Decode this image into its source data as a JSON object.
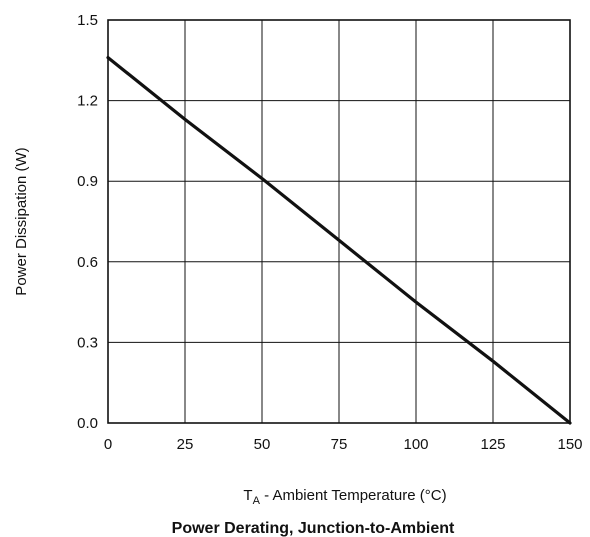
{
  "chart_data": {
    "type": "line",
    "title": "Power Derating, Junction-to-Ambient",
    "xlabel_main": "T",
    "xlabel_sub": "A",
    "xlabel_rest": " - Ambient Temperature (°C)",
    "ylabel": "Power Dissipation (W)",
    "xlim": [
      0,
      150
    ],
    "ylim": [
      0,
      1.5
    ],
    "x_ticks": [
      0,
      25,
      50,
      75,
      100,
      125,
      150
    ],
    "y_ticks": [
      0.0,
      0.3,
      0.6,
      0.9,
      1.2,
      1.5
    ],
    "x_tick_labels": [
      "0",
      "25",
      "50",
      "75",
      "100",
      "125",
      "150"
    ],
    "y_tick_labels": [
      "0.0",
      "0.3",
      "0.6",
      "0.9",
      "1.2",
      "1.5"
    ],
    "grid": true,
    "series": [
      {
        "color": "#111111",
        "x": [
          0,
          25,
          50,
          75,
          100,
          125,
          150
        ],
        "y": [
          1.36,
          1.13,
          0.91,
          0.68,
          0.45,
          0.23,
          0.0
        ]
      }
    ]
  }
}
